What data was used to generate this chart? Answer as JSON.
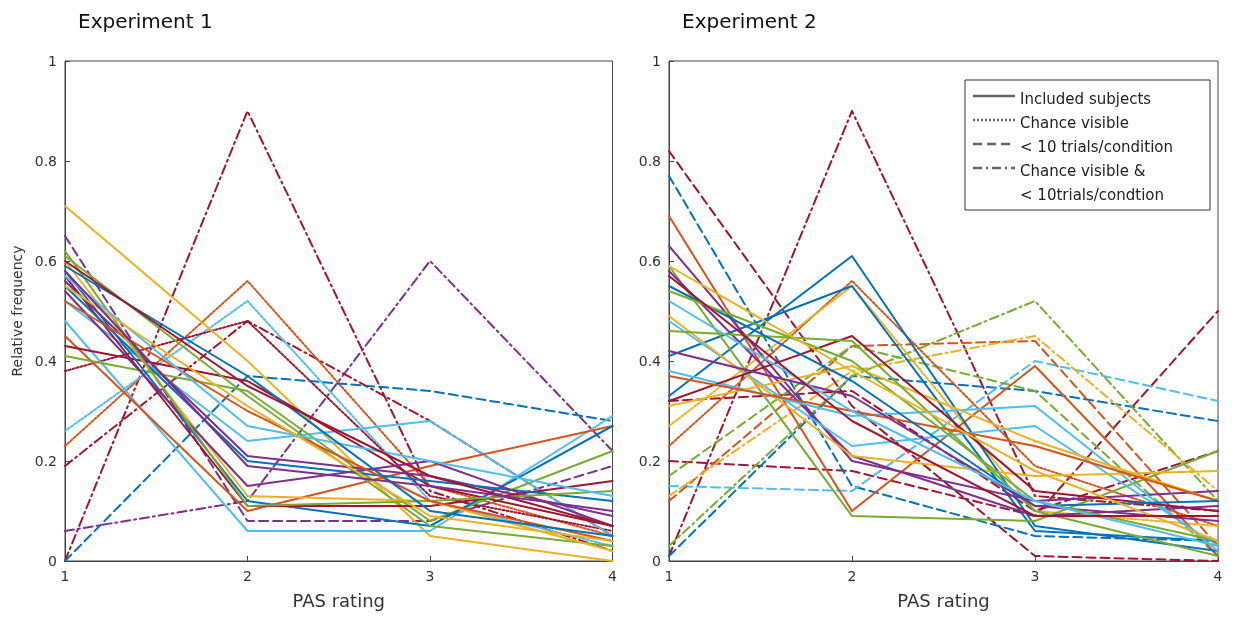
{
  "chart_data": [
    {
      "type": "line",
      "title": "Experiment 1",
      "xlabel": "PAS rating",
      "ylabel": "Relative frequency",
      "x": [
        1,
        2,
        3,
        4
      ],
      "xlim": [
        1,
        4
      ],
      "xticks": [
        1,
        2,
        3,
        4
      ],
      "ylim": [
        0,
        1
      ],
      "yticks": [
        0,
        0.2,
        0.4,
        0.6,
        0.8,
        1
      ],
      "grid": false,
      "legend": false,
      "marker": "none",
      "series": [
        {
          "color": "#a2142f",
          "line_style": "dashdot",
          "values": [
            0,
            0.9,
            0.14,
            0.02
          ]
        },
        {
          "color": "#7e2f8e",
          "line_style": "dashdot",
          "values": [
            0.06,
            0.12,
            0.6,
            0.22
          ]
        },
        {
          "color": "#a2142f",
          "line_style": "dashdot",
          "values": [
            0.19,
            0.48,
            0.28,
            0.05
          ]
        },
        {
          "color": "#d95319",
          "line_style": "dotted",
          "values": [
            0.23,
            0.56,
            0.15,
            0.05
          ]
        },
        {
          "color": "#4dbeee",
          "line_style": "dotted",
          "values": [
            0.26,
            0.52,
            0.12,
            0.03
          ]
        },
        {
          "color": "#a2142f",
          "line_style": "dotted",
          "values": [
            0.38,
            0.48,
            0.13,
            0.06
          ]
        },
        {
          "color": "#0072bd",
          "line_style": "dashed",
          "values": [
            0,
            0.37,
            0.34,
            0.28
          ]
        },
        {
          "color": "#7e2f8e",
          "line_style": "dashed",
          "values": [
            0.65,
            0.08,
            0.08,
            0.19
          ]
        },
        {
          "color": "#edb120",
          "line_style": "solid",
          "values": [
            0.71,
            0.4,
            0.05,
            0
          ]
        },
        {
          "color": "#4dbeee",
          "line_style": "solid",
          "values": [
            0.48,
            0.06,
            0.06,
            0.29
          ]
        },
        {
          "color": "#4dbeee",
          "line_style": "solid",
          "values": [
            0.52,
            0.24,
            0.28,
            0.05
          ]
        },
        {
          "color": "#d95319",
          "line_style": "solid",
          "values": [
            0.45,
            0.1,
            0.19,
            0.27
          ]
        },
        {
          "color": "#a2142f",
          "line_style": "solid",
          "values": [
            0.43,
            0.36,
            0.15,
            0.07
          ]
        },
        {
          "color": "#77ac30",
          "line_style": "solid",
          "values": [
            0.41,
            0.34,
            0.08,
            0.22
          ]
        },
        {
          "color": "#0072bd",
          "line_style": "solid",
          "values": [
            0.58,
            0.12,
            0.07,
            0.27
          ]
        },
        {
          "color": "#77ac30",
          "line_style": "solid",
          "values": [
            0.61,
            0.33,
            0.07,
            0.03
          ]
        },
        {
          "color": "#7e2f8e",
          "line_style": "solid",
          "values": [
            0.56,
            0.21,
            0.17,
            0.09
          ]
        },
        {
          "color": "#a2142f",
          "line_style": "solid",
          "values": [
            0.57,
            0.11,
            0.11,
            0.16
          ]
        },
        {
          "color": "#0072bd",
          "line_style": "solid",
          "values": [
            0.55,
            0.2,
            0.16,
            0.12
          ]
        },
        {
          "color": "#edb120",
          "line_style": "solid",
          "values": [
            0.6,
            0.13,
            0.12,
            0.02
          ]
        },
        {
          "color": "#7e2f8e",
          "line_style": "solid",
          "values": [
            0.54,
            0.15,
            0.2,
            0.07
          ]
        },
        {
          "color": "#77ac30",
          "line_style": "solid",
          "values": [
            0.62,
            0.11,
            0.12,
            0.14
          ]
        },
        {
          "color": "#d95319",
          "line_style": "solid",
          "values": [
            0.52,
            0.3,
            0.12,
            0.04
          ]
        },
        {
          "color": "#4dbeee",
          "line_style": "solid",
          "values": [
            0.57,
            0.27,
            0.2,
            0.13
          ]
        },
        {
          "color": "#0072bd",
          "line_style": "solid",
          "values": [
            0.59,
            0.37,
            0.1,
            0.05
          ]
        },
        {
          "color": "#edb120",
          "line_style": "solid",
          "values": [
            0.55,
            0.31,
            0.09,
            0.04
          ]
        },
        {
          "color": "#a2142f",
          "line_style": "solid",
          "values": [
            0.6,
            0.35,
            0.17,
            0.07
          ]
        },
        {
          "color": "#7e2f8e",
          "line_style": "solid",
          "values": [
            0.58,
            0.19,
            0.15,
            0.1
          ]
        }
      ]
    },
    {
      "type": "line",
      "title": "Experiment 2",
      "xlabel": "PAS rating",
      "x": [
        1,
        2,
        3,
        4
      ],
      "xlim": [
        1,
        4
      ],
      "xticks": [
        1,
        2,
        3,
        4
      ],
      "ylim": [
        0,
        1
      ],
      "yticks": [
        0,
        0.2,
        0.4,
        0.6,
        0.8,
        1
      ],
      "grid": false,
      "legend": "top right",
      "marker": "none",
      "series": [
        {
          "name": "Included subjects",
          "color": "#666666",
          "line_style": "solid",
          "values": [
            null,
            null,
            null,
            null
          ]
        },
        {
          "name": "Chance visible",
          "color": "#666666",
          "line_style": "dotted",
          "values": [
            null,
            null,
            null,
            null
          ]
        },
        {
          "name": "< 10 trials/condition",
          "color": "#666666",
          "line_style": "dashed",
          "values": [
            null,
            null,
            null,
            null
          ]
        },
        {
          "name": "Chance visible &\n< 10trials/condtion",
          "color": "#666666",
          "line_style": "dashdot",
          "values": [
            null,
            null,
            null,
            null
          ]
        },
        {
          "color": "#a2142f",
          "line_style": "dashdot",
          "values": [
            0.01,
            0.9,
            0.13,
            0.1
          ]
        },
        {
          "color": "#a2142f",
          "line_style": "dashed",
          "values": [
            0.82,
            0.31,
            0.01,
            0
          ]
        },
        {
          "color": "#a2142f",
          "line_style": "dashed",
          "values": [
            0.2,
            0.18,
            0.09,
            0.5
          ]
        },
        {
          "color": "#a2142f",
          "line_style": "dashed",
          "values": [
            0.32,
            0.34,
            0.1,
            0.22
          ]
        },
        {
          "color": "#0072bd",
          "line_style": "dashed",
          "values": [
            0.77,
            0.15,
            0.05,
            0.04
          ]
        },
        {
          "color": "#0072bd",
          "line_style": "dashed",
          "values": [
            0.01,
            0.37,
            0.34,
            0.28
          ]
        },
        {
          "color": "#4dbeee",
          "line_style": "dashed",
          "values": [
            0.15,
            0.14,
            0.4,
            0.32
          ]
        },
        {
          "color": "#d95319",
          "line_style": "dashed",
          "values": [
            0.12,
            0.43,
            0.44,
            0.03
          ]
        },
        {
          "color": "#77ac30",
          "line_style": "dashdot",
          "values": [
            0.03,
            0.37,
            0.52,
            0.12
          ]
        },
        {
          "color": "#edb120",
          "line_style": "dashdot",
          "values": [
            0.13,
            0.38,
            0.45,
            0.14
          ]
        },
        {
          "color": "#77ac30",
          "line_style": "dashed",
          "values": [
            0.17,
            0.43,
            0.34,
            0.01
          ]
        },
        {
          "color": "#d95319",
          "line_style": "dotted",
          "values": [
            0.23,
            0.56,
            0.19,
            0.07
          ]
        },
        {
          "color": "#edb120",
          "line_style": "dotted",
          "values": [
            0.27,
            0.55,
            0.1,
            0.07
          ]
        },
        {
          "color": "#d95319",
          "line_style": "solid",
          "values": [
            0.69,
            0.1,
            0.39,
            0.01
          ]
        },
        {
          "color": "#0072bd",
          "line_style": "solid",
          "values": [
            0.33,
            0.61,
            0.07,
            0.02
          ]
        },
        {
          "color": "#0072bd",
          "line_style": "solid",
          "values": [
            0.41,
            0.55,
            0.06,
            0.04
          ]
        },
        {
          "color": "#77ac30",
          "line_style": "solid",
          "values": [
            0.59,
            0.09,
            0.08,
            0.22
          ]
        },
        {
          "color": "#7e2f8e",
          "line_style": "solid",
          "values": [
            0.63,
            0.2,
            0.12,
            0.14
          ]
        },
        {
          "color": "#7e2f8e",
          "line_style": "solid",
          "values": [
            0.58,
            0.21,
            0.09,
            0.11
          ]
        },
        {
          "color": "#4dbeee",
          "line_style": "solid",
          "values": [
            0.48,
            0.23,
            0.27,
            0.03
          ]
        },
        {
          "color": "#4dbeee",
          "line_style": "solid",
          "values": [
            0.38,
            0.29,
            0.31,
            0.02
          ]
        },
        {
          "color": "#edb120",
          "line_style": "solid",
          "values": [
            0.49,
            0.21,
            0.17,
            0.18
          ]
        },
        {
          "color": "#edb120",
          "line_style": "solid",
          "values": [
            0.31,
            0.39,
            0.24,
            0.12
          ]
        },
        {
          "color": "#a2142f",
          "line_style": "solid",
          "values": [
            0.32,
            0.45,
            0.14,
            0.1
          ]
        },
        {
          "color": "#77ac30",
          "line_style": "solid",
          "values": [
            0.46,
            0.44,
            0.1,
            0.01
          ]
        },
        {
          "color": "#d95319",
          "line_style": "solid",
          "values": [
            0.37,
            0.3,
            0.23,
            0.12
          ]
        },
        {
          "color": "#0072bd",
          "line_style": "solid",
          "values": [
            0.55,
            0.36,
            0.11,
            0.12
          ]
        },
        {
          "color": "#7e2f8e",
          "line_style": "solid",
          "values": [
            0.42,
            0.33,
            0.11,
            0.08
          ]
        },
        {
          "color": "#77ac30",
          "line_style": "solid",
          "values": [
            0.54,
            0.4,
            0.12,
            0.04
          ]
        },
        {
          "color": "#4dbeee",
          "line_style": "solid",
          "values": [
            0.52,
            0.3,
            0.12,
            0.03
          ]
        },
        {
          "color": "#edb120",
          "line_style": "solid",
          "values": [
            0.59,
            0.38,
            0.18,
            0.04
          ]
        },
        {
          "color": "#a2142f",
          "line_style": "solid",
          "values": [
            0.57,
            0.28,
            0.09,
            0.09
          ]
        }
      ]
    }
  ]
}
